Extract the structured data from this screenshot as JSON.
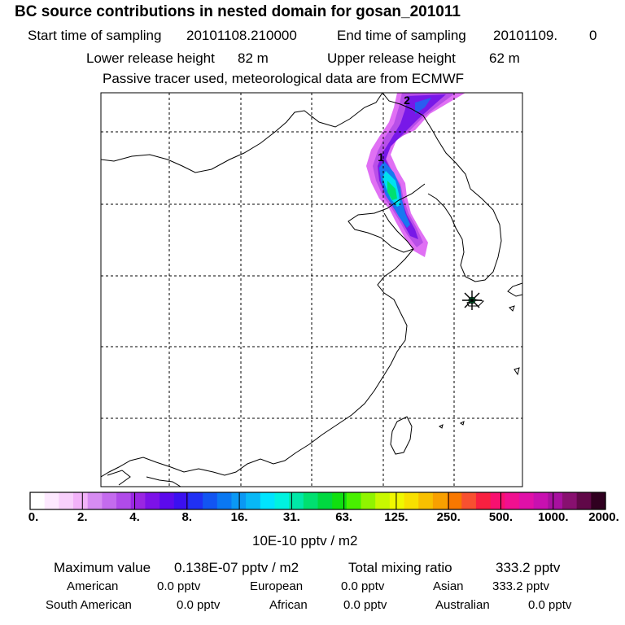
{
  "header": {
    "title": "BC  source contributions in nested domain for gosan_201011",
    "start_label": "Start time of sampling",
    "start_value": "20101108.210000",
    "end_label": "End time of sampling",
    "end_value": "20101109.",
    "end_suffix": "0",
    "lower_label": "Lower release height",
    "lower_value": "82 m",
    "upper_label": "Upper release height",
    "upper_value": "62 m",
    "tracer_note": "Passive tracer used, meteorological data are from ECMWF"
  },
  "map": {
    "contour_labels": [
      "2",
      "1"
    ],
    "receptor_marker": "asterisk-station-icon"
  },
  "colorbar": {
    "ticks": [
      "0.",
      "2.",
      "4.",
      "8.",
      "16.",
      "31.",
      "63.",
      "125.",
      "250.",
      "500.",
      "1000.",
      "2000."
    ],
    "unit": "10E-10 pptv / m2",
    "colors": [
      "#ffffff",
      "#fde9ff",
      "#f8d0fc",
      "#f2b2f9",
      "#d78cf2",
      "#c46bee",
      "#b04be9",
      "#9a26e2",
      "#7d12e8",
      "#5c0aec",
      "#3b10f0",
      "#2030f4",
      "#1255f2",
      "#0a78f2",
      "#0a98f4",
      "#08b8f6",
      "#00e4ff",
      "#00f2e0",
      "#00e8a8",
      "#00e070",
      "#00d840",
      "#10e010",
      "#48f000",
      "#90f400",
      "#c8f800",
      "#f0f800",
      "#f8e000",
      "#f8c000",
      "#f8a000",
      "#f87800",
      "#f85030",
      "#f82040",
      "#f81070",
      "#f01090",
      "#e010a8",
      "#c810b0",
      "#a810a0",
      "#881070",
      "#600848",
      "#300020"
    ]
  },
  "footer": {
    "max_label": "Maximum value",
    "max_value": "0.138E-07 pptv / m2",
    "total_label": "Total mixing ratio",
    "total_value": "333.2 pptv",
    "regions": [
      {
        "name": "American",
        "value": "0.0 pptv"
      },
      {
        "name": "European",
        "value": "0.0 pptv"
      },
      {
        "name": "Asian",
        "value": "333.2 pptv"
      },
      {
        "name": "South American",
        "value": "0.0 pptv"
      },
      {
        "name": "African",
        "value": "0.0 pptv"
      },
      {
        "name": "Australian",
        "value": "0.0 pptv"
      }
    ]
  }
}
